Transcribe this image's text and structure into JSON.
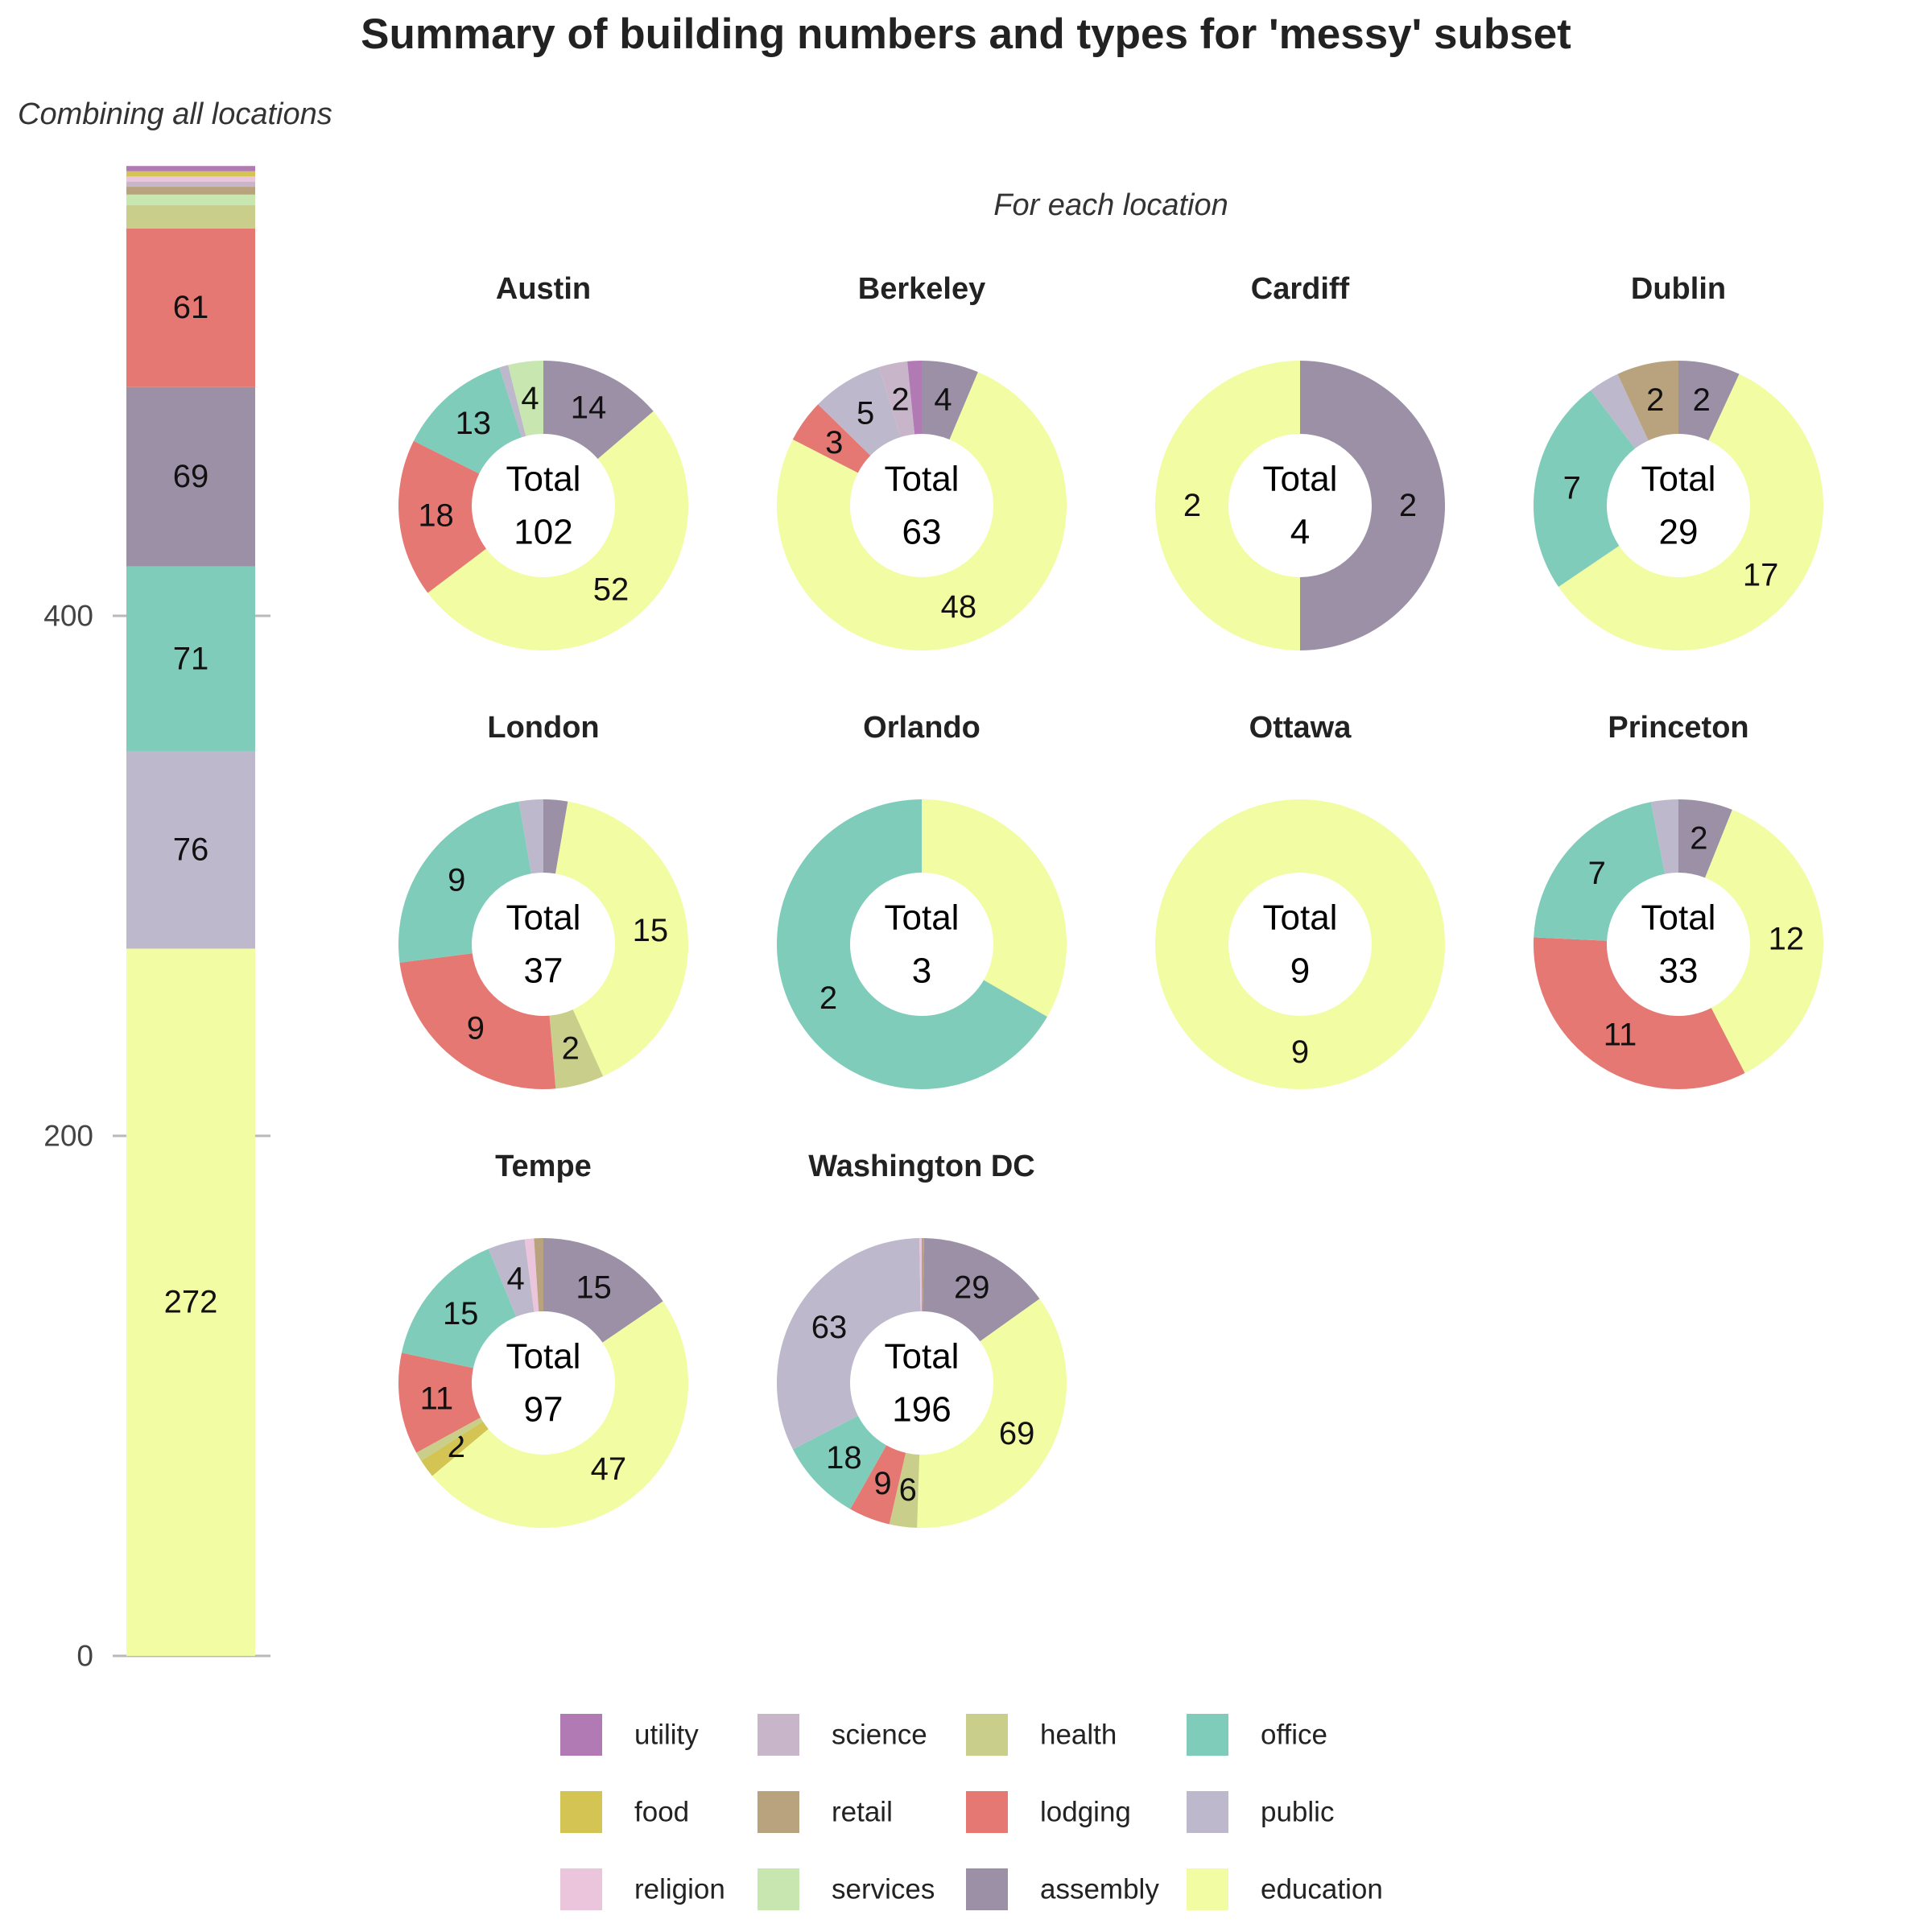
{
  "title": "Summary of building numbers and types for 'messy' subset",
  "left_subtitle": "Combining all locations",
  "right_subtitle": "For each location",
  "total_label": "Total",
  "colors": {
    "utility": "#b27ab4",
    "food": "#d4c454",
    "religion": "#ebc5db",
    "science": "#c9b5c9",
    "retail": "#b9a27e",
    "services": "#c8e6b0",
    "health": "#c9cf8b",
    "lodging": "#e57873",
    "assembly": "#9b90a6",
    "office": "#7fccba",
    "public": "#bdb8cb",
    "education": "#f2fca2"
  },
  "chart_data": [
    {
      "type": "bar",
      "title": "Combining all locations",
      "categories": [
        "All locations"
      ],
      "ylim": [
        0,
        575
      ],
      "yticks": [
        0,
        200,
        400
      ],
      "grid": false,
      "series": [
        {
          "name": "education",
          "values": [
            272
          ]
        },
        {
          "name": "public",
          "values": [
            76
          ]
        },
        {
          "name": "office",
          "values": [
            71
          ]
        },
        {
          "name": "assembly",
          "values": [
            69
          ]
        },
        {
          "name": "lodging",
          "values": [
            61
          ]
        },
        {
          "name": "health",
          "values": [
            9
          ]
        },
        {
          "name": "services",
          "values": [
            4
          ]
        },
        {
          "name": "retail",
          "values": [
            3
          ]
        },
        {
          "name": "science",
          "values": [
            2
          ]
        },
        {
          "name": "religion",
          "values": [
            2
          ]
        },
        {
          "name": "food",
          "values": [
            2
          ]
        },
        {
          "name": "utility",
          "values": [
            2
          ]
        }
      ],
      "bar_labels": [
        {
          "series": "education",
          "label": "272"
        },
        {
          "series": "public",
          "label": "76"
        },
        {
          "series": "office",
          "label": "71"
        },
        {
          "series": "assembly",
          "label": "69"
        },
        {
          "series": "lodging",
          "label": "61"
        }
      ]
    },
    {
      "type": "pie",
      "title": "For each location",
      "facets": [
        {
          "location": "Austin",
          "total": "102",
          "slices": [
            {
              "category": "assembly",
              "value": 14,
              "label": "14"
            },
            {
              "category": "education",
              "value": 52,
              "label": "52"
            },
            {
              "category": "lodging",
              "value": 18,
              "label": "18"
            },
            {
              "category": "office",
              "value": 13,
              "label": "13"
            },
            {
              "category": "public",
              "value": 1
            },
            {
              "category": "services",
              "value": 4,
              "label": "4"
            }
          ]
        },
        {
          "location": "Berkeley",
          "total": "63",
          "slices": [
            {
              "category": "assembly",
              "value": 4,
              "label": "4"
            },
            {
              "category": "education",
              "value": 48,
              "label": "48"
            },
            {
              "category": "lodging",
              "value": 3,
              "label": "3"
            },
            {
              "category": "public",
              "value": 5,
              "label": "5"
            },
            {
              "category": "science",
              "value": 2,
              "label": "2"
            },
            {
              "category": "utility",
              "value": 1
            }
          ]
        },
        {
          "location": "Cardiff",
          "total": "4",
          "slices": [
            {
              "category": "assembly",
              "value": 2,
              "label": "2"
            },
            {
              "category": "education",
              "value": 2,
              "label": "2"
            }
          ]
        },
        {
          "location": "Dublin",
          "total": "29",
          "slices": [
            {
              "category": "assembly",
              "value": 2,
              "label": "2"
            },
            {
              "category": "education",
              "value": 17,
              "label": "17"
            },
            {
              "category": "office",
              "value": 7,
              "label": "7"
            },
            {
              "category": "public",
              "value": 1
            },
            {
              "category": "retail",
              "value": 2,
              "label": "2"
            }
          ]
        },
        {
          "location": "London",
          "total": "37",
          "slices": [
            {
              "category": "assembly",
              "value": 1
            },
            {
              "category": "education",
              "value": 15,
              "label": "15"
            },
            {
              "category": "health",
              "value": 2,
              "label": "2"
            },
            {
              "category": "lodging",
              "value": 9,
              "label": "9"
            },
            {
              "category": "office",
              "value": 9,
              "label": "9"
            },
            {
              "category": "public",
              "value": 1
            }
          ]
        },
        {
          "location": "Orlando",
          "total": "3",
          "slices": [
            {
              "category": "education",
              "value": 1
            },
            {
              "category": "office",
              "value": 2,
              "label": "2"
            }
          ]
        },
        {
          "location": "Ottawa",
          "total": "9",
          "slices": [
            {
              "category": "education",
              "value": 9,
              "label": "9"
            }
          ]
        },
        {
          "location": "Princeton",
          "total": "33",
          "slices": [
            {
              "category": "assembly",
              "value": 2,
              "label": "2"
            },
            {
              "category": "education",
              "value": 12,
              "label": "12"
            },
            {
              "category": "lodging",
              "value": 11,
              "label": "11"
            },
            {
              "category": "office",
              "value": 7,
              "label": "7"
            },
            {
              "category": "public",
              "value": 1
            }
          ]
        },
        {
          "location": "Tempe",
          "total": "97",
          "slices": [
            {
              "category": "assembly",
              "value": 15,
              "label": "15"
            },
            {
              "category": "education",
              "value": 47,
              "label": "47"
            },
            {
              "category": "food",
              "value": 2,
              "label": "2"
            },
            {
              "category": "health",
              "value": 1
            },
            {
              "category": "lodging",
              "value": 11,
              "label": "11"
            },
            {
              "category": "office",
              "value": 15,
              "label": "15"
            },
            {
              "category": "public",
              "value": 4,
              "label": "4"
            },
            {
              "category": "religion",
              "value": 1
            },
            {
              "category": "retail",
              "value": 1
            }
          ]
        },
        {
          "location": "Washington DC",
          "total": "196",
          "slices": [
            {
              "category": "retail",
              "value": 0.5
            },
            {
              "category": "assembly",
              "value": 29,
              "label": "29"
            },
            {
              "category": "education",
              "value": 69,
              "label": "69"
            },
            {
              "category": "health",
              "value": 6,
              "label": "6"
            },
            {
              "category": "lodging",
              "value": 9,
              "label": "9"
            },
            {
              "category": "office",
              "value": 18,
              "label": "18"
            },
            {
              "category": "public",
              "value": 63,
              "label": "63"
            },
            {
              "category": "religion",
              "value": 0.5
            }
          ]
        }
      ]
    }
  ],
  "legend": {
    "position": "bottom",
    "entries": [
      "utility",
      "science",
      "health",
      "office",
      "food",
      "retail",
      "lodging",
      "public",
      "religion",
      "services",
      "assembly",
      "education"
    ]
  }
}
